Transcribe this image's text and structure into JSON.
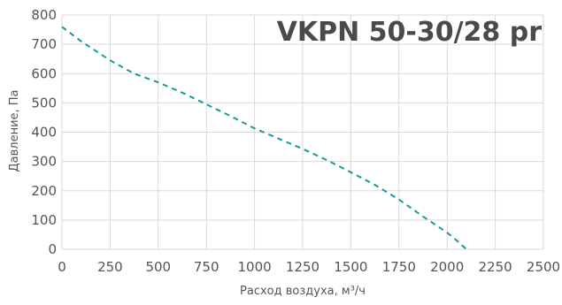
{
  "chart_data": {
    "type": "line",
    "title": "VKPN 50-30/28 pr",
    "xlabel": "Расход воздуха, м³/ч",
    "ylabel": "Давление, Па",
    "xlim": [
      0,
      2500
    ],
    "ylim": [
      0,
      800
    ],
    "x_ticks": [
      0,
      250,
      500,
      750,
      1000,
      1250,
      1500,
      1750,
      2000,
      2250,
      2500
    ],
    "y_ticks": [
      0,
      100,
      200,
      300,
      400,
      500,
      600,
      700,
      800
    ],
    "x_tick_labels": [
      "0",
      "250",
      "500",
      "750",
      "1000",
      "1250",
      "1500",
      "1750",
      "2000",
      "2250",
      "2500"
    ],
    "y_tick_labels": [
      "0",
      "100",
      "200",
      "300",
      "400",
      "500",
      "600",
      "700",
      "800"
    ],
    "grid": true,
    "series": [
      {
        "color": "#1a9a96",
        "style": "dashed",
        "x": [
          0,
          100,
          250,
          375,
          500,
          625,
          750,
          875,
          1000,
          1125,
          1250,
          1375,
          1500,
          1625,
          1750,
          1875,
          2000,
          2050,
          2100
        ],
        "y": [
          760,
          710,
          645,
          600,
          570,
          535,
          495,
          455,
          413,
          378,
          343,
          305,
          263,
          220,
          170,
          112,
          57,
          30,
          0
        ]
      }
    ]
  }
}
